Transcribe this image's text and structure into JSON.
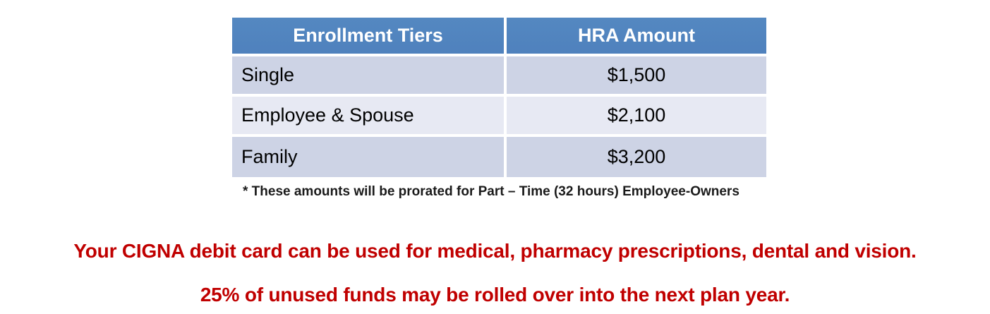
{
  "table": {
    "headers": {
      "tiers": "Enrollment Tiers",
      "amount": "HRA Amount"
    },
    "rows": [
      {
        "tier": "Single",
        "amount": "$1,500"
      },
      {
        "tier": "Employee & Spouse",
        "amount": "$2,100"
      },
      {
        "tier": "Family",
        "amount": "$3,200"
      }
    ],
    "footnote": "* These amounts will be prorated for Part – Time (32 hours) Employee-Owners"
  },
  "notes": {
    "line1": "Your CIGNA debit card can be used for medical, pharmacy prescriptions, dental and vision.",
    "line2": "25% of unused funds may be rolled over into the next plan year."
  },
  "colors": {
    "header_bg": "#4f81bd",
    "header_text": "#ffffff",
    "row_dark_bg": "#cdd3e5",
    "row_light_bg": "#e7e9f3",
    "gutter": "#ffffff",
    "note_red": "#c00000",
    "body_text": "#000000"
  }
}
